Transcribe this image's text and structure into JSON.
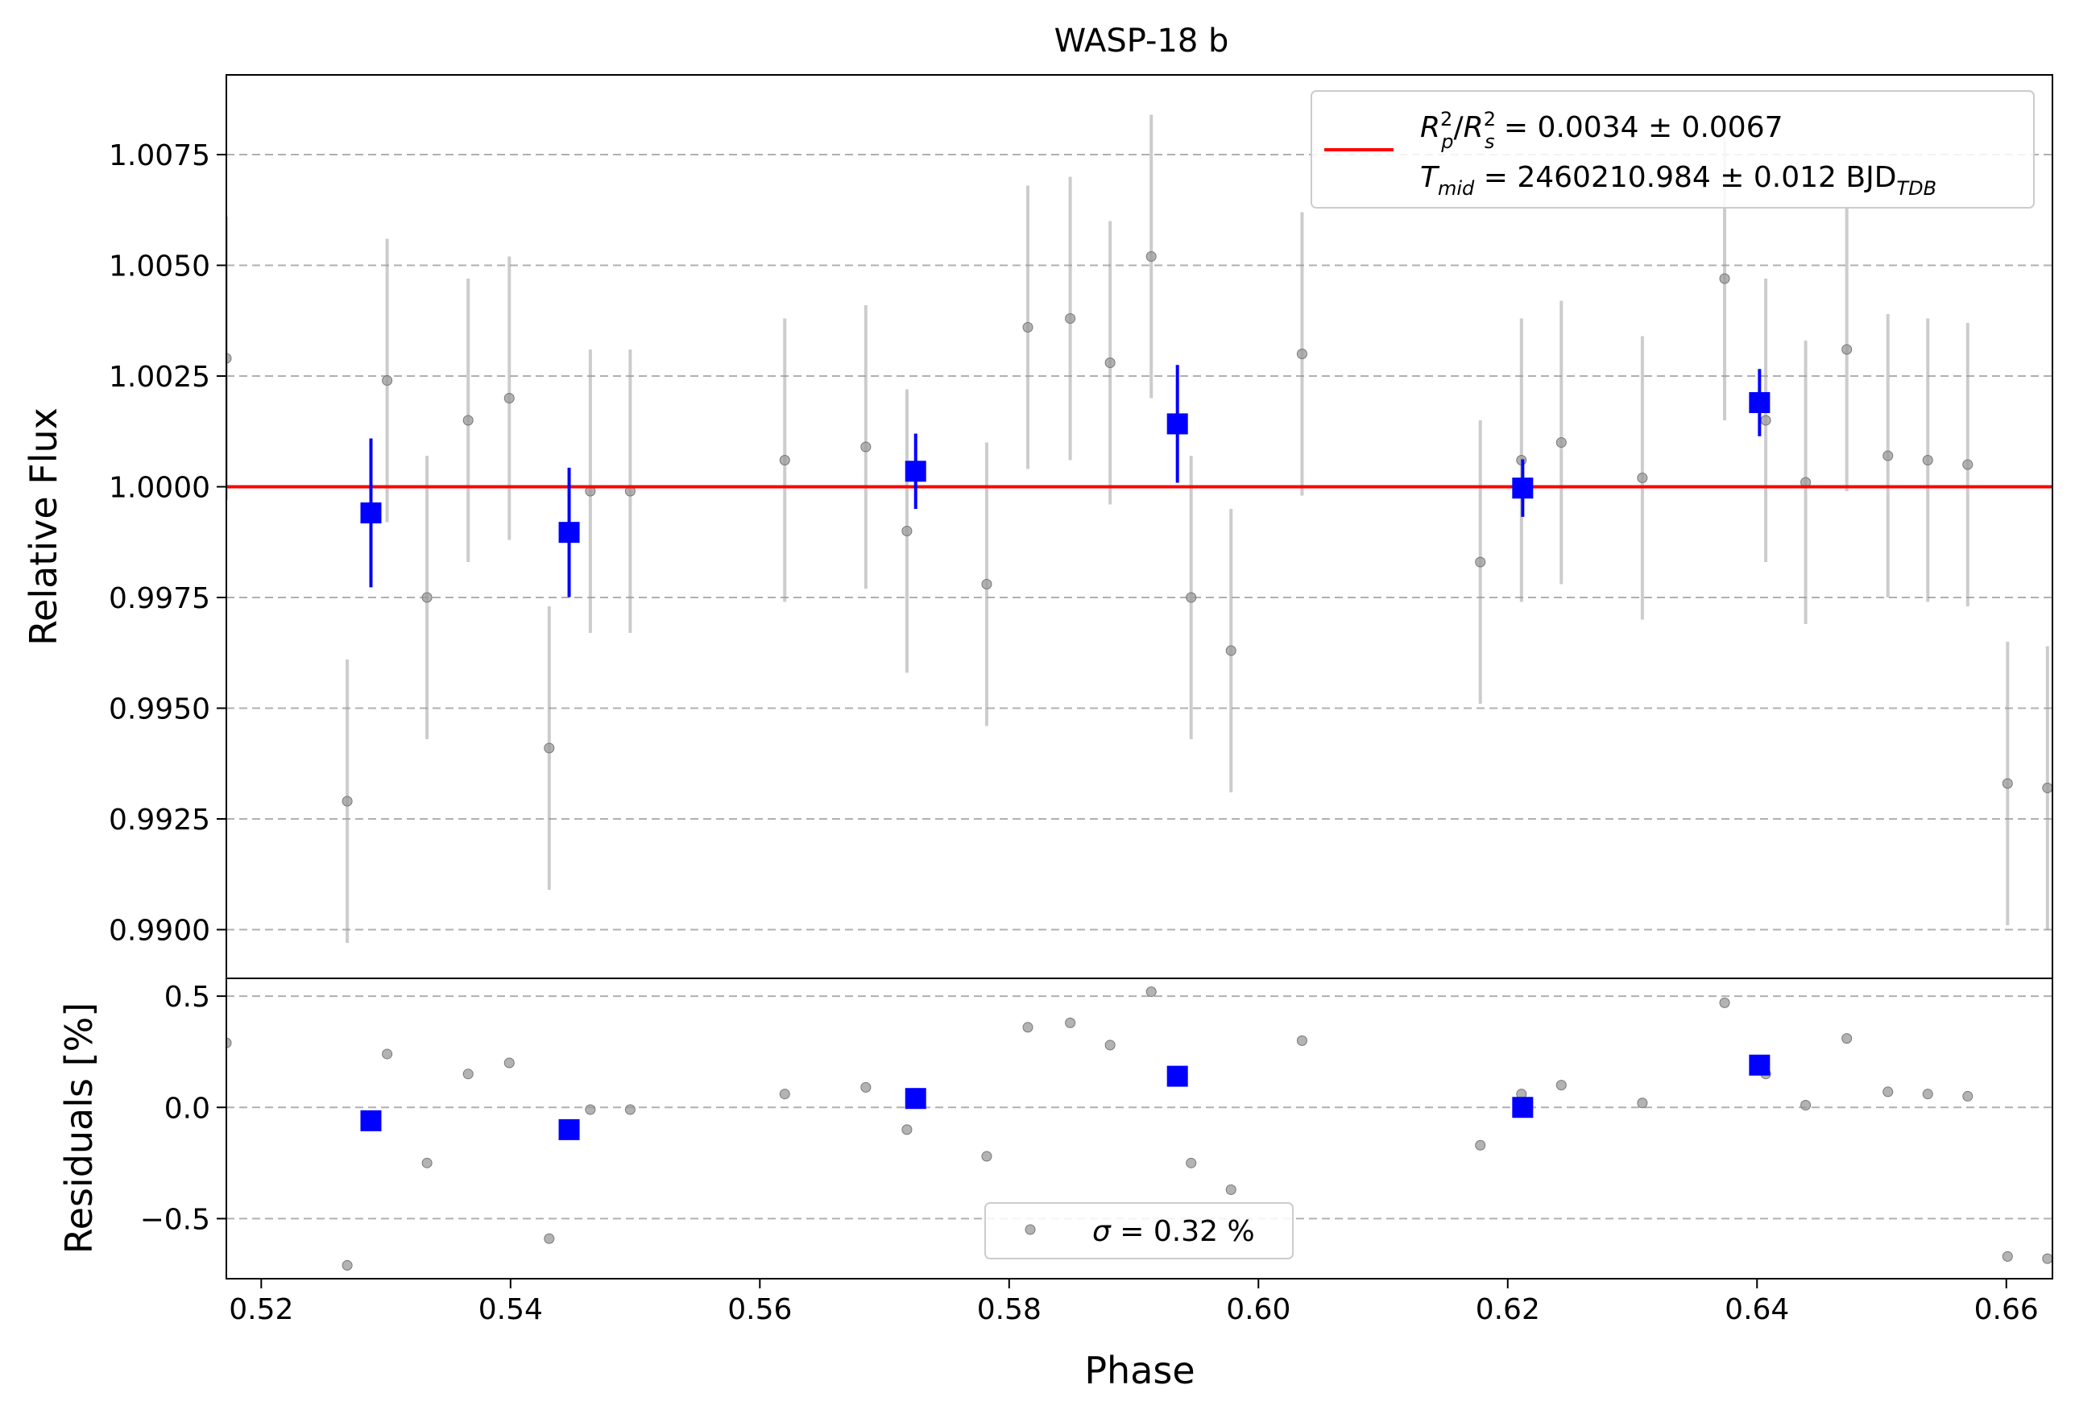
{
  "chart_data": [
    {
      "type": "scatter",
      "panel": "main",
      "title": "WASP-18 b",
      "xlabel": "",
      "ylabel": "Relative Flux",
      "xlim": [
        0.5172,
        0.6637
      ],
      "ylim": [
        0.9889,
        1.0093
      ],
      "yticks": [
        "0.9900",
        "0.9925",
        "0.9950",
        "0.9975",
        "1.0000",
        "1.0025",
        "1.0050",
        "1.0075"
      ],
      "grid": "horizontal dashed",
      "legend_position": "top-right",
      "legend": {
        "line1_lhs": "R",
        "line1_rhs": " = 0.0034 ± 0.0067",
        "line2_lhs": "T",
        "line2_sub": "mid",
        "line2_rhs": " = 2460210.984 ± 0.012 BJD",
        "line2_unit_sub": "TDB"
      },
      "model": {
        "name": "transit model",
        "color": "#ff0000",
        "value": 1.0
      },
      "series": [
        {
          "name": "data",
          "color": "#999999",
          "points": [
            {
              "x": 0.5172,
              "y": 1.0029,
              "err": 0.0032
            },
            {
              "x": 0.5269,
              "y": 0.9929,
              "err": 0.0032
            },
            {
              "x": 0.5301,
              "y": 1.0024,
              "err": 0.0032
            },
            {
              "x": 0.5333,
              "y": 0.9975,
              "err": 0.0032
            },
            {
              "x": 0.5366,
              "y": 1.0015,
              "err": 0.0032
            },
            {
              "x": 0.5399,
              "y": 1.002,
              "err": 0.0032
            },
            {
              "x": 0.5431,
              "y": 0.9941,
              "err": 0.0032
            },
            {
              "x": 0.5464,
              "y": 0.9999,
              "err": 0.0032
            },
            {
              "x": 0.5496,
              "y": 0.9999,
              "err": 0.0032
            },
            {
              "x": 0.562,
              "y": 1.0006,
              "err": 0.0032
            },
            {
              "x": 0.5685,
              "y": 1.0009,
              "err": 0.0032
            },
            {
              "x": 0.5718,
              "y": 0.999,
              "err": 0.0032
            },
            {
              "x": 0.5782,
              "y": 0.9978,
              "err": 0.0032
            },
            {
              "x": 0.5815,
              "y": 1.0036,
              "err": 0.0032
            },
            {
              "x": 0.5849,
              "y": 1.0038,
              "err": 0.0032
            },
            {
              "x": 0.5881,
              "y": 1.0028,
              "err": 0.0032
            },
            {
              "x": 0.5914,
              "y": 1.0052,
              "err": 0.0032
            },
            {
              "x": 0.5946,
              "y": 0.9975,
              "err": 0.0032
            },
            {
              "x": 0.5978,
              "y": 0.9963,
              "err": 0.0032
            },
            {
              "x": 0.6035,
              "y": 1.003,
              "err": 0.0032
            },
            {
              "x": 0.6178,
              "y": 0.9983,
              "err": 0.0032
            },
            {
              "x": 0.6211,
              "y": 1.0006,
              "err": 0.0032
            },
            {
              "x": 0.6243,
              "y": 1.001,
              "err": 0.0032
            },
            {
              "x": 0.6308,
              "y": 1.0002,
              "err": 0.0032
            },
            {
              "x": 0.6374,
              "y": 1.0047,
              "err": 0.0032
            },
            {
              "x": 0.6407,
              "y": 1.0015,
              "err": 0.0032
            },
            {
              "x": 0.6439,
              "y": 1.0001,
              "err": 0.0032
            },
            {
              "x": 0.6472,
              "y": 1.0031,
              "err": 0.0032
            },
            {
              "x": 0.6505,
              "y": 1.0007,
              "err": 0.0032
            },
            {
              "x": 0.6537,
              "y": 1.0006,
              "err": 0.0032
            },
            {
              "x": 0.6569,
              "y": 1.0005,
              "err": 0.0032
            },
            {
              "x": 0.6601,
              "y": 0.9933,
              "err": 0.0032
            },
            {
              "x": 0.6633,
              "y": 0.9932,
              "err": 0.0032
            }
          ]
        },
        {
          "name": "binned",
          "color": "#0000ff",
          "points": [
            {
              "x": 0.5288,
              "y": 0.99941,
              "err": 0.00168
            },
            {
              "x": 0.5447,
              "y": 0.99897,
              "err": 0.00146
            },
            {
              "x": 0.5725,
              "y": 1.00035,
              "err": 0.00085
            },
            {
              "x": 0.5935,
              "y": 1.00142,
              "err": 0.00133
            },
            {
              "x": 0.6212,
              "y": 0.99997,
              "err": 0.00065
            },
            {
              "x": 0.6402,
              "y": 1.0019,
              "err": 0.00076
            }
          ]
        }
      ]
    },
    {
      "type": "scatter",
      "panel": "residuals",
      "xlabel": "Phase",
      "ylabel": "Residuals [%]",
      "xlim": [
        0.5172,
        0.6637
      ],
      "ylim": [
        -0.77,
        0.58
      ],
      "xticks": [
        "0.52",
        "0.54",
        "0.56",
        "0.58",
        "0.60",
        "0.62",
        "0.64",
        "0.66"
      ],
      "yticks": [
        "−0.5",
        "0.0",
        "0.5"
      ],
      "grid": "horizontal dashed",
      "legend_position": "bottom-center",
      "legend": {
        "sigma_symbol": "σ",
        "sigma_text": " = 0.32 %"
      },
      "series": [
        {
          "name": "data",
          "color": "#999999",
          "points": [
            {
              "x": 0.5172,
              "y": 0.29
            },
            {
              "x": 0.5269,
              "y": -0.71
            },
            {
              "x": 0.5301,
              "y": 0.24
            },
            {
              "x": 0.5333,
              "y": -0.25
            },
            {
              "x": 0.5366,
              "y": 0.15
            },
            {
              "x": 0.5399,
              "y": 0.2
            },
            {
              "x": 0.5431,
              "y": -0.59
            },
            {
              "x": 0.5464,
              "y": -0.01
            },
            {
              "x": 0.5496,
              "y": -0.01
            },
            {
              "x": 0.562,
              "y": 0.06
            },
            {
              "x": 0.5685,
              "y": 0.09
            },
            {
              "x": 0.5718,
              "y": -0.1
            },
            {
              "x": 0.5782,
              "y": -0.22
            },
            {
              "x": 0.5815,
              "y": 0.36
            },
            {
              "x": 0.5849,
              "y": 0.38
            },
            {
              "x": 0.5881,
              "y": 0.28
            },
            {
              "x": 0.5914,
              "y": 0.52
            },
            {
              "x": 0.5946,
              "y": -0.25
            },
            {
              "x": 0.5978,
              "y": -0.37
            },
            {
              "x": 0.6035,
              "y": 0.3
            },
            {
              "x": 0.6178,
              "y": -0.17
            },
            {
              "x": 0.6211,
              "y": 0.06
            },
            {
              "x": 0.6243,
              "y": 0.1
            },
            {
              "x": 0.6308,
              "y": 0.02
            },
            {
              "x": 0.6374,
              "y": 0.47
            },
            {
              "x": 0.6407,
              "y": 0.15
            },
            {
              "x": 0.6439,
              "y": 0.01
            },
            {
              "x": 0.6472,
              "y": 0.31
            },
            {
              "x": 0.6505,
              "y": 0.07
            },
            {
              "x": 0.6537,
              "y": 0.06
            },
            {
              "x": 0.6569,
              "y": 0.05
            },
            {
              "x": 0.6601,
              "y": -0.67
            },
            {
              "x": 0.6633,
              "y": -0.68
            }
          ]
        },
        {
          "name": "binned",
          "color": "#0000ff",
          "points": [
            {
              "x": 0.5288,
              "y": -0.06
            },
            {
              "x": 0.5447,
              "y": -0.1
            },
            {
              "x": 0.5725,
              "y": 0.04
            },
            {
              "x": 0.5935,
              "y": 0.14
            },
            {
              "x": 0.6212,
              "y": 0.0
            },
            {
              "x": 0.6402,
              "y": 0.19
            }
          ]
        }
      ]
    }
  ]
}
